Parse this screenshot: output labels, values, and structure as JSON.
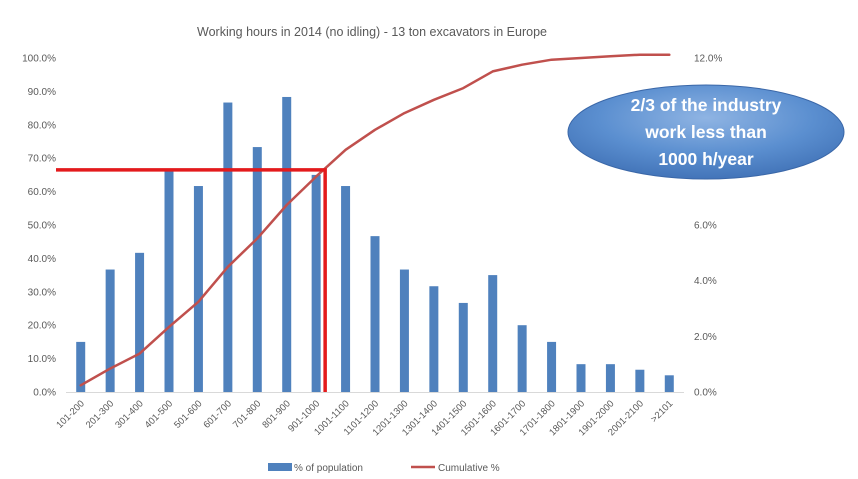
{
  "chart_data": {
    "type": "bar",
    "title": "Working hours in 2014 (no idling) - 13 ton excavators in Europe",
    "categories": [
      "101-200",
      "201-300",
      "301-400",
      "401-500",
      "501-600",
      "601-700",
      "701-800",
      "801-900",
      "901-1000",
      "1001-1100",
      "1101-1200",
      "1201-1300",
      "1301-1400",
      "1401-1500",
      "1501-1600",
      "1601-1700",
      "1701-1800",
      "1801-1900",
      "1901-2000",
      "2001-2100",
      ">2101"
    ],
    "series": [
      {
        "name": "% of population",
        "type": "bar",
        "axis": "secondary",
        "values": [
          1.8,
          4.4,
          5.0,
          8.0,
          7.4,
          10.4,
          8.8,
          10.6,
          7.8,
          7.4,
          5.6,
          4.4,
          3.8,
          3.2,
          4.2,
          2.4,
          1.8,
          1.0,
          1.0,
          0.8,
          0.6
        ]
      },
      {
        "name": "Cumulative %",
        "type": "line",
        "axis": "primary",
        "values": [
          2.0,
          7.0,
          11.5,
          19.5,
          27.0,
          37.5,
          46.0,
          56.0,
          64.5,
          72.5,
          78.5,
          83.5,
          87.5,
          91.0,
          96.0,
          98.0,
          99.5,
          100.0,
          100.5,
          101.0,
          101.0
        ]
      }
    ],
    "y_primary": {
      "min": 0,
      "max": 100,
      "ticks": [
        "0.0%",
        "10.0%",
        "20.0%",
        "30.0%",
        "40.0%",
        "50.0%",
        "60.0%",
        "70.0%",
        "80.0%",
        "90.0%",
        "100.0%"
      ]
    },
    "y_secondary": {
      "min": 0,
      "max": 12,
      "ticks": [
        "0.0%",
        "2.0%",
        "4.0%",
        "6.0%",
        "8.0%",
        "10.0%",
        "12.0%"
      ]
    },
    "grid": false,
    "legend_position": "bottom",
    "annotation": {
      "lines": [
        "2/3 of the industry",
        "work less than",
        "1000 h/year"
      ],
      "threshold_percent": 66.5,
      "threshold_category": "901-1000"
    }
  },
  "colors": {
    "bar": "#4f81bd",
    "line": "#c0504d",
    "marker": "#e31a1c",
    "callout_fill": "#4a7ebb",
    "axis_text": "#595959"
  }
}
